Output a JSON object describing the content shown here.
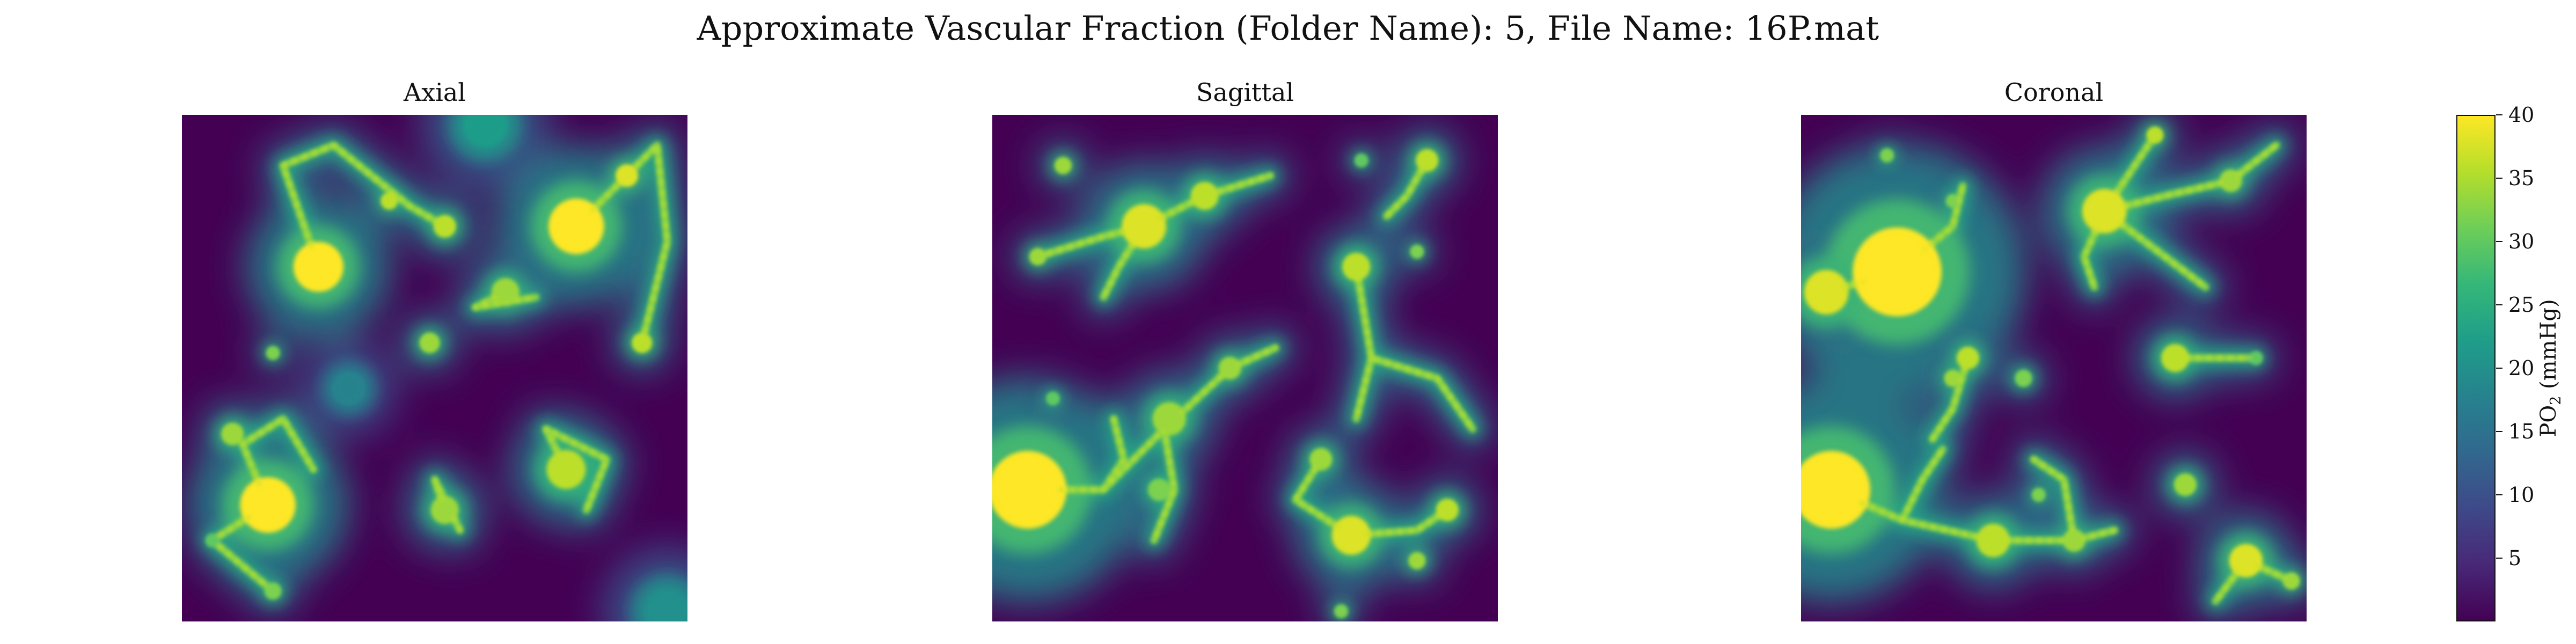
{
  "figure": {
    "title": "Approximate Vascular Fraction (Folder Name): 5, File Name: 16P.mat"
  },
  "chart_data": [
    {
      "type": "heatmap",
      "title": "Axial",
      "colormap": "viridis",
      "vmin": 0,
      "vmax": 40,
      "hotspots": [
        {
          "x": 0.27,
          "y": 0.3,
          "r": 0.045,
          "value": 40
        },
        {
          "x": 0.78,
          "y": 0.22,
          "r": 0.05,
          "value": 40
        },
        {
          "x": 0.88,
          "y": 0.12,
          "r": 0.02,
          "value": 38
        },
        {
          "x": 0.52,
          "y": 0.22,
          "r": 0.02,
          "value": 36
        },
        {
          "x": 0.41,
          "y": 0.17,
          "r": 0.015,
          "value": 36
        },
        {
          "x": 0.64,
          "y": 0.35,
          "r": 0.025,
          "value": 34
        },
        {
          "x": 0.18,
          "y": 0.47,
          "r": 0.012,
          "value": 32
        },
        {
          "x": 0.49,
          "y": 0.45,
          "r": 0.018,
          "value": 34
        },
        {
          "x": 0.91,
          "y": 0.45,
          "r": 0.018,
          "value": 36
        },
        {
          "x": 0.17,
          "y": 0.77,
          "r": 0.05,
          "value": 40
        },
        {
          "x": 0.1,
          "y": 0.63,
          "r": 0.02,
          "value": 34
        },
        {
          "x": 0.52,
          "y": 0.78,
          "r": 0.025,
          "value": 34
        },
        {
          "x": 0.76,
          "y": 0.7,
          "r": 0.035,
          "value": 36
        },
        {
          "x": 0.18,
          "y": 0.94,
          "r": 0.015,
          "value": 32
        },
        {
          "x": 0.06,
          "y": 0.84,
          "r": 0.012,
          "value": 30
        },
        {
          "x": 0.33,
          "y": 0.54,
          "r": 0.03,
          "value": 18
        },
        {
          "x": 0.6,
          "y": 0.02,
          "r": 0.04,
          "value": 22
        },
        {
          "x": 0.96,
          "y": 0.98,
          "r": 0.04,
          "value": 20
        }
      ],
      "vessels": [
        [
          [
            0.27,
            0.3
          ],
          [
            0.2,
            0.1
          ],
          [
            0.3,
            0.06
          ],
          [
            0.45,
            0.18
          ],
          [
            0.52,
            0.22
          ]
        ],
        [
          [
            0.78,
            0.22
          ],
          [
            0.94,
            0.06
          ],
          [
            0.96,
            0.25
          ],
          [
            0.91,
            0.45
          ]
        ],
        [
          [
            0.17,
            0.77
          ],
          [
            0.12,
            0.65
          ],
          [
            0.2,
            0.6
          ],
          [
            0.26,
            0.7
          ]
        ],
        [
          [
            0.17,
            0.77
          ],
          [
            0.06,
            0.84
          ],
          [
            0.18,
            0.94
          ]
        ],
        [
          [
            0.76,
            0.7
          ],
          [
            0.72,
            0.62
          ],
          [
            0.84,
            0.68
          ],
          [
            0.8,
            0.78
          ]
        ],
        [
          [
            0.52,
            0.78
          ],
          [
            0.5,
            0.72
          ],
          [
            0.55,
            0.82
          ]
        ],
        [
          [
            0.64,
            0.35
          ],
          [
            0.58,
            0.38
          ],
          [
            0.7,
            0.36
          ]
        ]
      ]
    },
    {
      "type": "heatmap",
      "title": "Sagittal",
      "colormap": "viridis",
      "vmin": 0,
      "vmax": 40,
      "hotspots": [
        {
          "x": 0.07,
          "y": 0.74,
          "r": 0.07,
          "value": 40
        },
        {
          "x": 0.3,
          "y": 0.22,
          "r": 0.04,
          "value": 38
        },
        {
          "x": 0.42,
          "y": 0.16,
          "r": 0.025,
          "value": 36
        },
        {
          "x": 0.09,
          "y": 0.28,
          "r": 0.015,
          "value": 34
        },
        {
          "x": 0.14,
          "y": 0.1,
          "r": 0.015,
          "value": 34
        },
        {
          "x": 0.72,
          "y": 0.3,
          "r": 0.025,
          "value": 36
        },
        {
          "x": 0.84,
          "y": 0.27,
          "r": 0.012,
          "value": 32
        },
        {
          "x": 0.86,
          "y": 0.09,
          "r": 0.02,
          "value": 36
        },
        {
          "x": 0.73,
          "y": 0.09,
          "r": 0.012,
          "value": 30
        },
        {
          "x": 0.47,
          "y": 0.5,
          "r": 0.02,
          "value": 34
        },
        {
          "x": 0.35,
          "y": 0.6,
          "r": 0.03,
          "value": 34
        },
        {
          "x": 0.71,
          "y": 0.83,
          "r": 0.035,
          "value": 38
        },
        {
          "x": 0.65,
          "y": 0.68,
          "r": 0.02,
          "value": 34
        },
        {
          "x": 0.9,
          "y": 0.78,
          "r": 0.02,
          "value": 36
        },
        {
          "x": 0.84,
          "y": 0.88,
          "r": 0.015,
          "value": 34
        },
        {
          "x": 0.69,
          "y": 0.98,
          "r": 0.012,
          "value": 32
        },
        {
          "x": 0.12,
          "y": 0.56,
          "r": 0.012,
          "value": 30
        },
        {
          "x": 0.33,
          "y": 0.74,
          "r": 0.02,
          "value": 32
        }
      ],
      "vessels": [
        [
          [
            0.09,
            0.28
          ],
          [
            0.22,
            0.24
          ],
          [
            0.3,
            0.22
          ],
          [
            0.42,
            0.16
          ],
          [
            0.55,
            0.12
          ]
        ],
        [
          [
            0.3,
            0.22
          ],
          [
            0.25,
            0.3
          ],
          [
            0.22,
            0.36
          ]
        ],
        [
          [
            0.07,
            0.74
          ],
          [
            0.22,
            0.74
          ],
          [
            0.34,
            0.62
          ],
          [
            0.47,
            0.5
          ],
          [
            0.56,
            0.46
          ]
        ],
        [
          [
            0.34,
            0.62
          ],
          [
            0.36,
            0.74
          ],
          [
            0.32,
            0.84
          ]
        ],
        [
          [
            0.22,
            0.74
          ],
          [
            0.26,
            0.68
          ],
          [
            0.24,
            0.6
          ]
        ],
        [
          [
            0.65,
            0.68
          ],
          [
            0.6,
            0.76
          ],
          [
            0.71,
            0.83
          ],
          [
            0.84,
            0.82
          ],
          [
            0.9,
            0.78
          ]
        ],
        [
          [
            0.72,
            0.3
          ],
          [
            0.75,
            0.48
          ],
          [
            0.88,
            0.52
          ],
          [
            0.95,
            0.62
          ]
        ],
        [
          [
            0.75,
            0.48
          ],
          [
            0.72,
            0.6
          ]
        ],
        [
          [
            0.86,
            0.09
          ],
          [
            0.82,
            0.16
          ],
          [
            0.78,
            0.2
          ]
        ]
      ]
    },
    {
      "type": "heatmap",
      "title": "Coronal",
      "colormap": "viridis",
      "vmin": 0,
      "vmax": 40,
      "hotspots": [
        {
          "x": 0.19,
          "y": 0.31,
          "r": 0.08,
          "value": 40
        },
        {
          "x": 0.05,
          "y": 0.35,
          "r": 0.04,
          "value": 38
        },
        {
          "x": 0.06,
          "y": 0.74,
          "r": 0.07,
          "value": 40
        },
        {
          "x": 0.6,
          "y": 0.19,
          "r": 0.04,
          "value": 38
        },
        {
          "x": 0.7,
          "y": 0.04,
          "r": 0.015,
          "value": 36
        },
        {
          "x": 0.85,
          "y": 0.13,
          "r": 0.02,
          "value": 34
        },
        {
          "x": 0.17,
          "y": 0.08,
          "r": 0.012,
          "value": 32
        },
        {
          "x": 0.3,
          "y": 0.17,
          "r": 0.012,
          "value": 32
        },
        {
          "x": 0.33,
          "y": 0.48,
          "r": 0.02,
          "value": 36
        },
        {
          "x": 0.3,
          "y": 0.52,
          "r": 0.015,
          "value": 34
        },
        {
          "x": 0.44,
          "y": 0.52,
          "r": 0.015,
          "value": 32
        },
        {
          "x": 0.74,
          "y": 0.48,
          "r": 0.025,
          "value": 36
        },
        {
          "x": 0.9,
          "y": 0.48,
          "r": 0.012,
          "value": 30
        },
        {
          "x": 0.76,
          "y": 0.73,
          "r": 0.02,
          "value": 34
        },
        {
          "x": 0.38,
          "y": 0.84,
          "r": 0.03,
          "value": 36
        },
        {
          "x": 0.54,
          "y": 0.84,
          "r": 0.02,
          "value": 34
        },
        {
          "x": 0.88,
          "y": 0.88,
          "r": 0.03,
          "value": 38
        },
        {
          "x": 0.97,
          "y": 0.92,
          "r": 0.015,
          "value": 34
        },
        {
          "x": 0.47,
          "y": 0.75,
          "r": 0.012,
          "value": 32
        }
      ],
      "vessels": [
        [
          [
            0.19,
            0.31
          ],
          [
            0.05,
            0.35
          ]
        ],
        [
          [
            0.19,
            0.31
          ],
          [
            0.3,
            0.22
          ],
          [
            0.32,
            0.14
          ]
        ],
        [
          [
            0.6,
            0.19
          ],
          [
            0.7,
            0.04
          ]
        ],
        [
          [
            0.6,
            0.19
          ],
          [
            0.72,
            0.16
          ],
          [
            0.85,
            0.13
          ],
          [
            0.94,
            0.06
          ]
        ],
        [
          [
            0.6,
            0.19
          ],
          [
            0.56,
            0.28
          ],
          [
            0.58,
            0.34
          ]
        ],
        [
          [
            0.6,
            0.19
          ],
          [
            0.72,
            0.28
          ],
          [
            0.8,
            0.34
          ]
        ],
        [
          [
            0.06,
            0.74
          ],
          [
            0.2,
            0.8
          ],
          [
            0.38,
            0.84
          ],
          [
            0.54,
            0.84
          ],
          [
            0.62,
            0.82
          ]
        ],
        [
          [
            0.2,
            0.8
          ],
          [
            0.24,
            0.72
          ],
          [
            0.28,
            0.66
          ]
        ],
        [
          [
            0.54,
            0.84
          ],
          [
            0.52,
            0.72
          ],
          [
            0.46,
            0.68
          ]
        ],
        [
          [
            0.88,
            0.88
          ],
          [
            0.97,
            0.92
          ]
        ],
        [
          [
            0.88,
            0.88
          ],
          [
            0.82,
            0.96
          ]
        ],
        [
          [
            0.74,
            0.48
          ],
          [
            0.82,
            0.48
          ],
          [
            0.9,
            0.48
          ]
        ],
        [
          [
            0.33,
            0.48
          ],
          [
            0.3,
            0.58
          ],
          [
            0.26,
            0.64
          ]
        ]
      ]
    }
  ],
  "colorbar": {
    "label_main": "PO",
    "label_sub": "2",
    "label_unit": " (mmHg)",
    "vmin": 0,
    "vmax": 40,
    "ticks": [
      "5",
      "10",
      "15",
      "20",
      "25",
      "30",
      "35",
      "40"
    ],
    "tick_values": [
      5,
      10,
      15,
      20,
      25,
      30,
      35,
      40
    ],
    "colors": [
      "#440154",
      "#482878",
      "#3e4989",
      "#31688e",
      "#26828e",
      "#1f9e89",
      "#35b779",
      "#6ece58",
      "#b5de2b",
      "#fde725"
    ]
  }
}
